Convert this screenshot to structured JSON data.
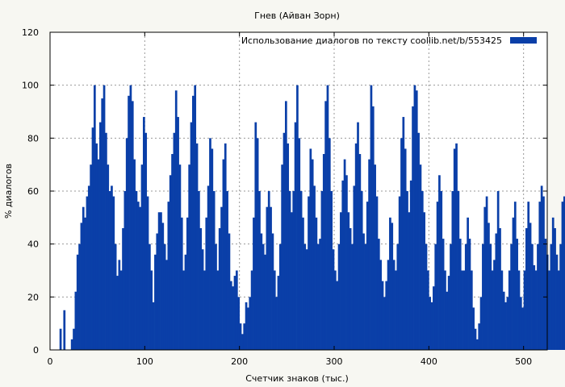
{
  "chart_data": {
    "type": "bar",
    "title": "Гнев (Айван Зорн)",
    "xlabel": "Счетчик знаков (тыс.)",
    "ylabel": "% диалогов",
    "xlim": [
      0,
      525
    ],
    "ylim": [
      0,
      120
    ],
    "xticks": [
      0,
      100,
      200,
      300,
      400,
      500
    ],
    "yticks": [
      0,
      20,
      40,
      60,
      80,
      100,
      120
    ],
    "grid": true,
    "legend_position": "top-right",
    "series": [
      {
        "name": "Использование диалогов по тексту  coollib.net/b/553425",
        "color": "#0a3fa8",
        "x_start": 10,
        "x_step": 2,
        "values": [
          8,
          0,
          15,
          0,
          0,
          0,
          4,
          8,
          22,
          36,
          40,
          48,
          54,
          50,
          58,
          62,
          70,
          84,
          100,
          78,
          72,
          86,
          95,
          100,
          82,
          70,
          60,
          62,
          58,
          40,
          28,
          34,
          30,
          46,
          60,
          80,
          96,
          100,
          94,
          72,
          60,
          56,
          54,
          70,
          88,
          82,
          58,
          40,
          30,
          18,
          36,
          44,
          52,
          52,
          48,
          40,
          34,
          56,
          66,
          74,
          82,
          98,
          88,
          70,
          50,
          30,
          36,
          50,
          70,
          86,
          96,
          100,
          78,
          60,
          46,
          38,
          30,
          50,
          62,
          80,
          76,
          60,
          40,
          30,
          46,
          54,
          72,
          78,
          60,
          44,
          26,
          24,
          28,
          30,
          20,
          10,
          6,
          10,
          18,
          16,
          20,
          30,
          50,
          86,
          80,
          60,
          44,
          40,
          36,
          54,
          60,
          54,
          44,
          30,
          20,
          28,
          40,
          70,
          82,
          94,
          78,
          60,
          52,
          60,
          86,
          100,
          80,
          60,
          50,
          40,
          38,
          58,
          76,
          72,
          62,
          50,
          40,
          42,
          60,
          74,
          94,
          100,
          80,
          60,
          38,
          30,
          26,
          40,
          52,
          64,
          72,
          66,
          52,
          46,
          40,
          62,
          78,
          86,
          74,
          60,
          44,
          40,
          56,
          72,
          100,
          92,
          70,
          58,
          42,
          34,
          26,
          20,
          26,
          34,
          50,
          48,
          34,
          30,
          40,
          58,
          80,
          88,
          76,
          60,
          52,
          64,
          92,
          100,
          98,
          82,
          70,
          60,
          52,
          40,
          30,
          20,
          18,
          24,
          40,
          56,
          66,
          60,
          42,
          30,
          22,
          28,
          40,
          60,
          76,
          78,
          60,
          42,
          30,
          30,
          40,
          50,
          42,
          30,
          16,
          8,
          4,
          10,
          20,
          40,
          54,
          58,
          48,
          40,
          30,
          34,
          44,
          60,
          46,
          30,
          22,
          18,
          20,
          30,
          40,
          50,
          56,
          42,
          30,
          20,
          16,
          30,
          46,
          56,
          48,
          40,
          32,
          30,
          40,
          56,
          62,
          58,
          42,
          36,
          30,
          40,
          50,
          46,
          36,
          30,
          40,
          56,
          58,
          46,
          34,
          30
        ]
      }
    ]
  }
}
